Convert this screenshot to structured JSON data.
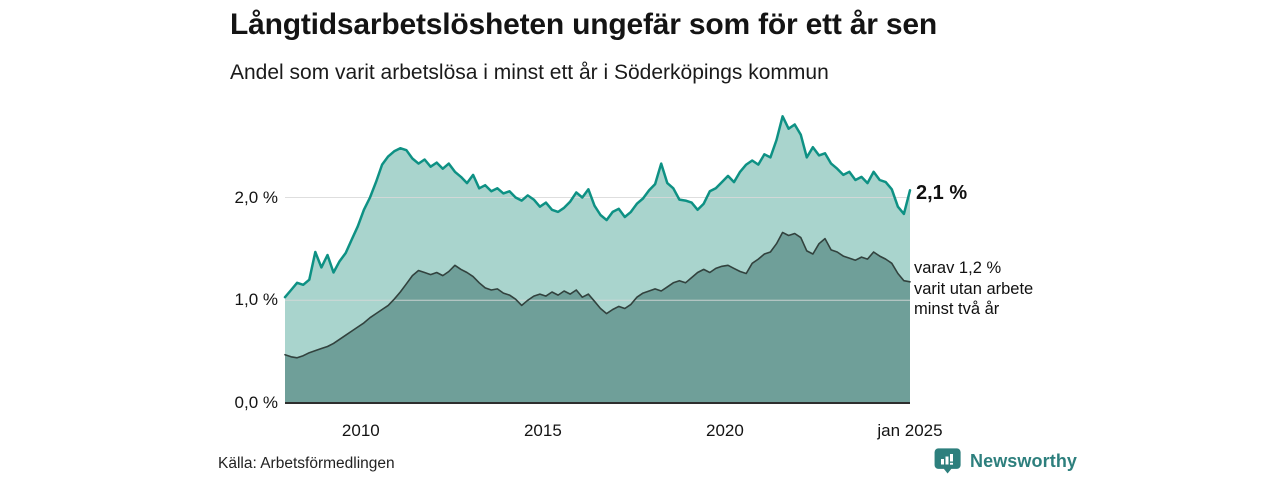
{
  "header": {
    "title": "Långtidsarbetslösheten ungefär som för ett år sen",
    "subtitle": "Andel som varit arbetslösa i minst ett år i Söderköpings kommun"
  },
  "source": "Källa: Arbetsförmedlingen",
  "branding": {
    "name": "Newsworthy",
    "icon": "newsworthy-speech-bubble-bar-chart-icon",
    "color": "#2d7f7d"
  },
  "colors": {
    "background": "#ffffff",
    "text": "#141414",
    "gridline": "#d9d9d9",
    "baseline": "#2e2e2e",
    "total_line": "#0e9184",
    "total_fill": "#a9d4cd",
    "two_year_line": "#32423e",
    "two_year_fill": "#6f9f99"
  },
  "chart_data": {
    "type": "area",
    "title": "Långtidsarbetslösheten ungefär som för ett år sen",
    "subtitle": "Andel som varit arbetslösa i minst ett år i Söderköpings kommun",
    "source": "Källa: Arbetsförmedlingen",
    "x_start": 2007.9167,
    "x_step": 0.1666667,
    "ylim": [
      0,
      2.85
    ],
    "grid": "horizontal",
    "legend": "end-of-line labels, right side",
    "yticks": [
      {
        "label": "0,0 %",
        "value": 0.0
      },
      {
        "label": "1,0 %",
        "value": 1.0
      },
      {
        "label": "2,0 %",
        "value": 2.0
      }
    ],
    "xticks": [
      {
        "label": "2010",
        "year": 2010.0
      },
      {
        "label": "2015",
        "year": 2015.0
      },
      {
        "label": "2020",
        "year": 2020.0
      },
      {
        "label": "jan 2025",
        "year": 2025.0833
      }
    ],
    "series": [
      {
        "name": "arbetslosa-minst-ett-ar-totalt",
        "end_label": "2,1 %",
        "line_color": "#0e9184",
        "fill_color": "#a9d4cd",
        "line_width": 2.5,
        "values": [
          1.03,
          1.1,
          1.17,
          1.15,
          1.2,
          1.47,
          1.32,
          1.44,
          1.27,
          1.38,
          1.46,
          1.59,
          1.72,
          1.88,
          2.0,
          2.15,
          2.32,
          2.4,
          2.45,
          2.48,
          2.46,
          2.38,
          2.33,
          2.37,
          2.3,
          2.34,
          2.28,
          2.33,
          2.25,
          2.2,
          2.14,
          2.22,
          2.09,
          2.12,
          2.06,
          2.09,
          2.04,
          2.06,
          2.0,
          1.97,
          2.02,
          1.98,
          1.91,
          1.95,
          1.88,
          1.86,
          1.9,
          1.96,
          2.05,
          2.0,
          2.08,
          1.92,
          1.83,
          1.78,
          1.86,
          1.89,
          1.81,
          1.86,
          1.94,
          1.99,
          2.07,
          2.13,
          2.33,
          2.14,
          2.09,
          1.98,
          1.97,
          1.95,
          1.88,
          1.94,
          2.06,
          2.09,
          2.15,
          2.21,
          2.15,
          2.25,
          2.32,
          2.36,
          2.32,
          2.42,
          2.39,
          2.56,
          2.79,
          2.67,
          2.71,
          2.61,
          2.39,
          2.49,
          2.41,
          2.43,
          2.33,
          2.28,
          2.22,
          2.25,
          2.17,
          2.2,
          2.14,
          2.25,
          2.17,
          2.15,
          2.08,
          1.91,
          1.84,
          2.07
        ]
      },
      {
        "name": "varav-utan-arbete-minst-tva-ar",
        "end_label": "varav 1,2 %\nvarit utan arbete\nminst två år",
        "line_color": "#32423e",
        "fill_color": "#6f9f99",
        "line_width": 1.6,
        "values": [
          0.47,
          0.45,
          0.44,
          0.46,
          0.49,
          0.51,
          0.53,
          0.55,
          0.58,
          0.62,
          0.66,
          0.7,
          0.74,
          0.78,
          0.83,
          0.87,
          0.91,
          0.95,
          1.01,
          1.08,
          1.16,
          1.24,
          1.29,
          1.27,
          1.25,
          1.27,
          1.24,
          1.28,
          1.34,
          1.3,
          1.27,
          1.23,
          1.17,
          1.12,
          1.1,
          1.11,
          1.07,
          1.05,
          1.01,
          0.95,
          1.0,
          1.04,
          1.06,
          1.04,
          1.08,
          1.05,
          1.09,
          1.06,
          1.1,
          1.03,
          1.06,
          0.99,
          0.92,
          0.87,
          0.91,
          0.94,
          0.92,
          0.96,
          1.03,
          1.07,
          1.09,
          1.11,
          1.09,
          1.13,
          1.17,
          1.19,
          1.17,
          1.22,
          1.27,
          1.3,
          1.27,
          1.31,
          1.33,
          1.34,
          1.31,
          1.28,
          1.26,
          1.36,
          1.4,
          1.45,
          1.47,
          1.55,
          1.66,
          1.63,
          1.65,
          1.61,
          1.48,
          1.45,
          1.55,
          1.6,
          1.49,
          1.47,
          1.43,
          1.41,
          1.39,
          1.42,
          1.4,
          1.47,
          1.43,
          1.4,
          1.36,
          1.26,
          1.19,
          1.18
        ]
      }
    ]
  }
}
